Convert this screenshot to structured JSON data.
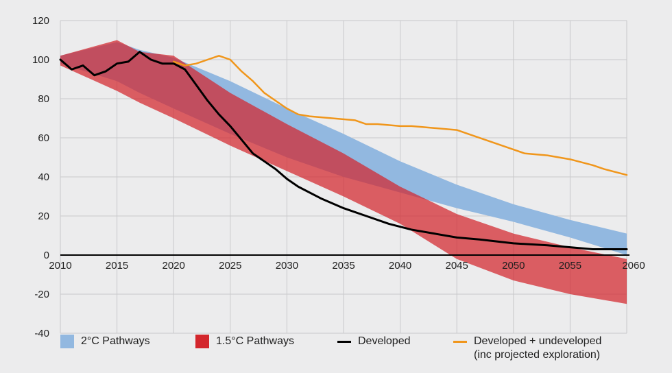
{
  "chart_data": {
    "type": "area",
    "title": "",
    "xlabel": "",
    "ylabel": "",
    "xlim": [
      2010,
      2060
    ],
    "ylim": [
      -40,
      120
    ],
    "y_ticks": [
      "120",
      "100",
      "80",
      "60",
      "40",
      "20",
      "0",
      "-20",
      "-40"
    ],
    "x_ticks": [
      "2010",
      "2015",
      "2020",
      "2025",
      "2030",
      "2035",
      "2040",
      "2045",
      "2050",
      "2055",
      "2060"
    ],
    "bands": [
      {
        "name": "2°C Pathways",
        "color": "#92b8e0",
        "x": [
          2010,
          2015,
          2017,
          2020,
          2025,
          2030,
          2035,
          2040,
          2045,
          2050,
          2055,
          2060
        ],
        "upper": [
          102,
          109,
          105,
          101,
          89,
          75,
          62,
          48,
          36,
          26,
          18,
          11
        ],
        "lower": [
          98,
          89,
          83,
          75,
          62,
          50,
          40,
          32,
          24,
          17,
          9,
          0
        ]
      },
      {
        "name": "1.5°C Pathways",
        "color": "#d3262c",
        "x": [
          2010,
          2015,
          2017,
          2020,
          2025,
          2030,
          2035,
          2040,
          2045,
          2050,
          2055,
          2060
        ],
        "upper": [
          102,
          110,
          104,
          102,
          83,
          67,
          52,
          35,
          21,
          11,
          4,
          -2
        ],
        "lower": [
          97,
          84,
          78,
          70,
          56,
          43,
          30,
          16,
          -2,
          -13,
          -20,
          -25
        ]
      }
    ],
    "series": [
      {
        "name": "Developed",
        "color": "#000000",
        "x": [
          2010,
          2011,
          2012,
          2013,
          2014,
          2015,
          2016,
          2017,
          2018,
          2019,
          2020,
          2021,
          2022,
          2023,
          2024,
          2025,
          2026,
          2027,
          2028,
          2029,
          2030,
          2031,
          2033,
          2035,
          2037,
          2039,
          2041,
          2043,
          2045,
          2047,
          2050,
          2053,
          2055,
          2057,
          2060
        ],
        "values": [
          100,
          95,
          97,
          92,
          94,
          98,
          99,
          104,
          100,
          98,
          98,
          95,
          87,
          79,
          72,
          66,
          59,
          52,
          48,
          44,
          39,
          35,
          29,
          24,
          20,
          16,
          13,
          11,
          9,
          8,
          6,
          5,
          4,
          3,
          3
        ]
      },
      {
        "name": "Developed + undeveloped\n(inc projected exploration)",
        "color": "#f0961b",
        "x": [
          2020,
          2021,
          2022,
          2023,
          2024,
          2025,
          2026,
          2027,
          2028,
          2029,
          2030,
          2031,
          2032,
          2034,
          2036,
          2037,
          2038,
          2040,
          2041,
          2043,
          2045,
          2046,
          2048,
          2050,
          2051,
          2053,
          2055,
          2057,
          2058,
          2060
        ],
        "values": [
          99,
          97,
          98,
          100,
          102,
          100,
          94,
          89,
          83,
          79,
          75,
          72,
          71,
          70,
          69,
          67,
          67,
          66,
          66,
          65,
          64,
          62,
          58,
          54,
          52,
          51,
          49,
          46,
          44,
          41
        ]
      }
    ],
    "legend": {
      "position": "bottom",
      "items": [
        {
          "label": "2°C Pathways",
          "kind": "band",
          "color": "#92b8e0"
        },
        {
          "label": "1.5°C Pathways",
          "kind": "band",
          "color": "#d3262c"
        },
        {
          "label": "Developed",
          "kind": "line",
          "color": "#000000"
        },
        {
          "label": "Developed + undeveloped\n(inc projected exploration)",
          "kind": "line",
          "color": "#f0961b"
        }
      ]
    }
  }
}
